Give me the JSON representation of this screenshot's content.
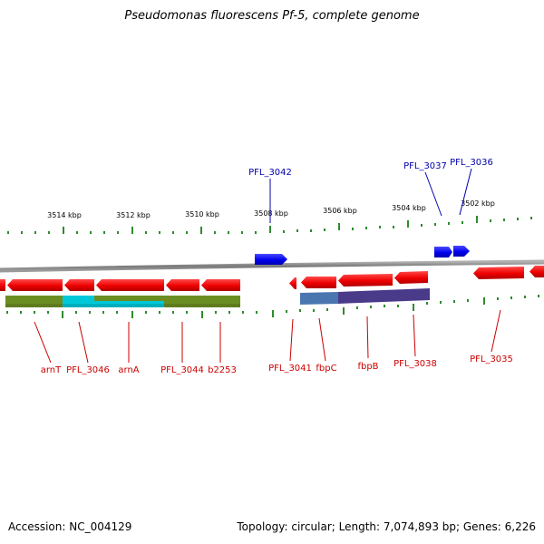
{
  "title": "Pseudomonas fluorescens Pf-5, complete genome",
  "accession_text": "Accession: NC_004129",
  "topology_text": "Topology: circular; Length: 7,074,893 bp; Genes: 6,226",
  "scale_labels": [
    "3514 kbp",
    "3512 kbp",
    "3510 kbp",
    "3508 kbp",
    "3506 kbp",
    "3504 kbp",
    "3502 kbp"
  ],
  "genes_top": [
    "PFL_3042",
    "PFL_3037",
    "PFL_3036"
  ],
  "genes_bottom": [
    "arnT",
    "PFL_3046",
    "arnA",
    "PFL_3044",
    "b2253",
    "PFL_3041",
    "fbpC",
    "fbpB",
    "PFL_3038",
    "PFL_3035"
  ],
  "colors": {
    "forward_gene": "#0000ff",
    "reverse_gene": "#ff0000",
    "top_label": "#0000aa",
    "bottom_label": "#cc0000",
    "ticks": "#2e8b2e",
    "backbone": "#808080",
    "domain_olive": "#6b8e23",
    "domain_cyan": "#00c8d8",
    "domain_blue": "#4060a0",
    "domain_purple": "#4a3a8a"
  }
}
